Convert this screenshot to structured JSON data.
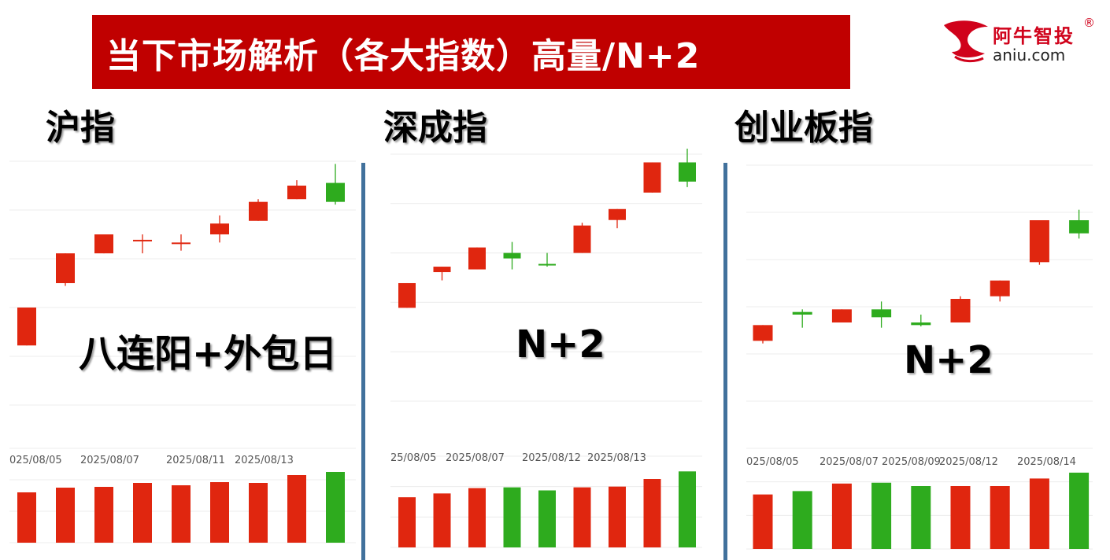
{
  "header": {
    "title": "当下市场解析（各大指数）高量/N+2"
  },
  "logo": {
    "name_cn": "阿牛智投",
    "registered": "®",
    "domain": "aniu.com"
  },
  "colors": {
    "up": "#e0260f",
    "down": "#2eab1e",
    "banner": "#c00000",
    "divider": "#41719c",
    "grid": "#ececec",
    "axis_text": "#555555"
  },
  "panels": [
    {
      "title": "沪指",
      "annotation": "八连阳+外包日"
    },
    {
      "title": "深成指",
      "annotation": "N+2"
    },
    {
      "title": "创业板指",
      "annotation": "N+2"
    }
  ],
  "chart_data": [
    {
      "type": "candlestick",
      "title": "沪指",
      "x_tick_labels": [
        "025/08/05",
        "2025/08/07",
        "2025/08/11",
        "2025/08/13"
      ],
      "ylim": [
        1,
        10
      ],
      "volume_ylim": [
        0,
        1.2
      ],
      "candles": [
        {
          "open": 3.2,
          "close": 4.6,
          "high": 4.6,
          "low": 3.2,
          "color": "up"
        },
        {
          "open": 5.5,
          "close": 6.6,
          "high": 6.6,
          "low": 5.4,
          "color": "up"
        },
        {
          "open": 6.6,
          "close": 7.3,
          "high": 7.3,
          "low": 6.6,
          "color": "up"
        },
        {
          "open": 7.1,
          "close": 7.1,
          "high": 7.3,
          "low": 6.6,
          "color": "up"
        },
        {
          "open": 7.0,
          "close": 7.0,
          "high": 7.3,
          "low": 6.7,
          "color": "up"
        },
        {
          "open": 7.3,
          "close": 7.7,
          "high": 8.0,
          "low": 7.0,
          "color": "up"
        },
        {
          "open": 7.8,
          "close": 8.5,
          "high": 8.6,
          "low": 7.8,
          "color": "up"
        },
        {
          "open": 8.6,
          "close": 9.1,
          "high": 9.3,
          "low": 8.6,
          "color": "up"
        },
        {
          "open": 9.2,
          "close": 8.5,
          "high": 9.9,
          "low": 8.4,
          "color": "down"
        }
      ],
      "volume": [
        {
          "value": 0.64,
          "color": "up"
        },
        {
          "value": 0.7,
          "color": "up"
        },
        {
          "value": 0.71,
          "color": "up"
        },
        {
          "value": 0.76,
          "color": "up"
        },
        {
          "value": 0.73,
          "color": "up"
        },
        {
          "value": 0.77,
          "color": "up"
        },
        {
          "value": 0.76,
          "color": "up"
        },
        {
          "value": 0.86,
          "color": "up"
        },
        {
          "value": 0.9,
          "color": "down"
        }
      ]
    },
    {
      "type": "candlestick",
      "title": "深成指",
      "x_tick_labels": [
        "25/08/05",
        "2025/08/07",
        "2025/08/12",
        "2025/08/13"
      ],
      "ylim": [
        1,
        10
      ],
      "volume_ylim": [
        0,
        1.2
      ],
      "candles": [
        {
          "open": 4.4,
          "close": 5.3,
          "high": 5.3,
          "low": 4.4,
          "color": "up"
        },
        {
          "open": 5.7,
          "close": 5.9,
          "high": 5.9,
          "low": 5.4,
          "color": "up"
        },
        {
          "open": 5.8,
          "close": 6.6,
          "high": 6.6,
          "low": 5.8,
          "color": "up"
        },
        {
          "open": 6.4,
          "close": 6.2,
          "high": 6.8,
          "low": 5.8,
          "color": "down"
        },
        {
          "open": 6.0,
          "close": 5.95,
          "high": 6.4,
          "low": 5.9,
          "color": "down"
        },
        {
          "open": 6.4,
          "close": 7.4,
          "high": 7.5,
          "low": 6.4,
          "color": "up"
        },
        {
          "open": 7.6,
          "close": 8.0,
          "high": 8.0,
          "low": 7.3,
          "color": "up"
        },
        {
          "open": 8.6,
          "close": 9.7,
          "high": 9.7,
          "low": 8.6,
          "color": "up"
        },
        {
          "open": 9.7,
          "close": 9.0,
          "high": 10.2,
          "low": 8.8,
          "color": "down"
        }
      ],
      "volume": [
        {
          "value": 0.66,
          "color": "up"
        },
        {
          "value": 0.71,
          "color": "up"
        },
        {
          "value": 0.78,
          "color": "up"
        },
        {
          "value": 0.79,
          "color": "down"
        },
        {
          "value": 0.75,
          "color": "down"
        },
        {
          "value": 0.79,
          "color": "up"
        },
        {
          "value": 0.8,
          "color": "up"
        },
        {
          "value": 0.9,
          "color": "up"
        },
        {
          "value": 1.0,
          "color": "down"
        }
      ]
    },
    {
      "type": "candlestick",
      "title": "创业板指",
      "x_tick_labels": [
        "025/08/05",
        "2025/08/07",
        "2025/08/09",
        "2025/08/12",
        "2025/08/14"
      ],
      "ylim": [
        1,
        10
      ],
      "volume_ylim": [
        0,
        1.2
      ],
      "candles": [
        {
          "open": 3.3,
          "close": 3.9,
          "high": 3.9,
          "low": 3.2,
          "color": "up"
        },
        {
          "open": 4.4,
          "close": 4.3,
          "high": 4.5,
          "low": 3.8,
          "color": "down"
        },
        {
          "open": 4.0,
          "close": 4.5,
          "high": 4.5,
          "low": 4.0,
          "color": "up"
        },
        {
          "open": 4.5,
          "close": 4.2,
          "high": 4.8,
          "low": 3.8,
          "color": "down"
        },
        {
          "open": 4.0,
          "close": 3.9,
          "high": 4.3,
          "low": 3.85,
          "color": "down"
        },
        {
          "open": 4.0,
          "close": 4.9,
          "high": 5.0,
          "low": 4.0,
          "color": "up"
        },
        {
          "open": 5.0,
          "close": 5.6,
          "high": 5.6,
          "low": 4.8,
          "color": "up"
        },
        {
          "open": 6.3,
          "close": 7.9,
          "high": 7.9,
          "low": 6.2,
          "color": "up"
        },
        {
          "open": 7.9,
          "close": 7.4,
          "high": 8.3,
          "low": 7.2,
          "color": "down"
        }
      ],
      "volume": [
        {
          "value": 0.65,
          "color": "up"
        },
        {
          "value": 0.69,
          "color": "down"
        },
        {
          "value": 0.78,
          "color": "up"
        },
        {
          "value": 0.79,
          "color": "down"
        },
        {
          "value": 0.75,
          "color": "down"
        },
        {
          "value": 0.75,
          "color": "up"
        },
        {
          "value": 0.75,
          "color": "up"
        },
        {
          "value": 0.84,
          "color": "up"
        },
        {
          "value": 0.91,
          "color": "down"
        }
      ]
    }
  ]
}
